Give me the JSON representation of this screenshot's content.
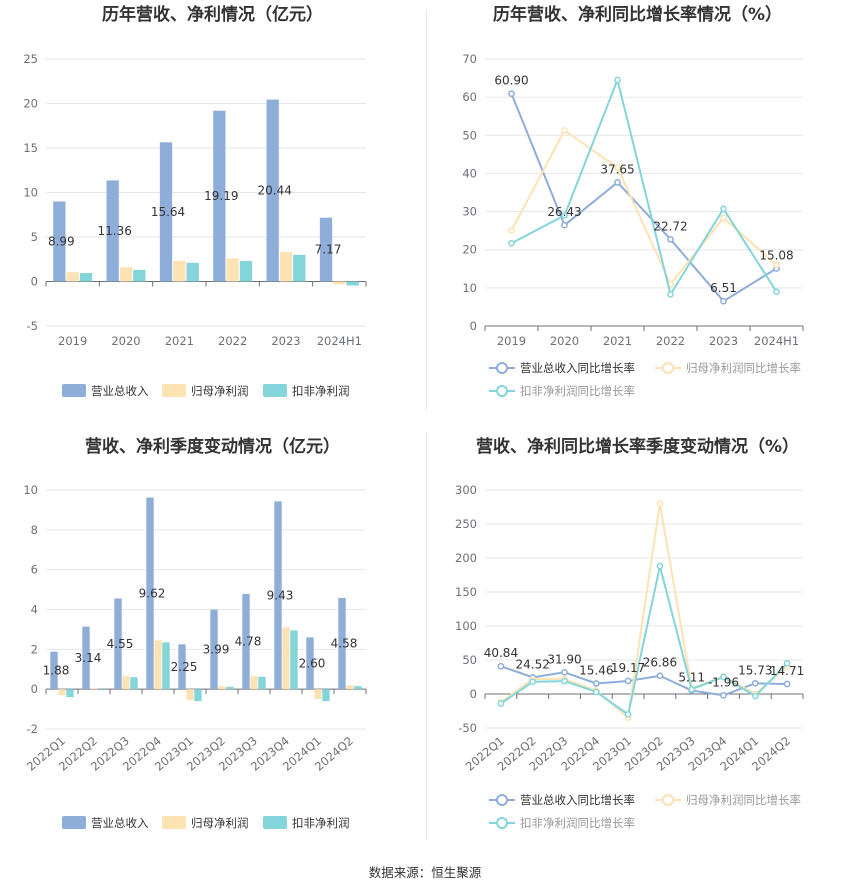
{
  "source": "数据来源：恒生聚源",
  "colors": {
    "revenue": "#8eadd9",
    "net": "#fde2b3",
    "deducted": "#84d5d9",
    "grid": "#e6e6e6",
    "axis": "#6e7079",
    "text": "#333333"
  },
  "chart_data": [
    {
      "type": "bar",
      "title": "历年营收、净利情况（亿元）",
      "categories": [
        "2019",
        "2020",
        "2021",
        "2022",
        "2023",
        "2024H1"
      ],
      "ylim": [
        -5,
        25
      ],
      "yticks": [
        -5,
        0,
        5,
        10,
        15,
        20,
        25
      ],
      "grid": true,
      "legend_position": "bottom",
      "series": [
        {
          "name": "营业总收入",
          "color": "#8eadd9",
          "values": [
            8.99,
            11.36,
            15.64,
            19.19,
            20.44,
            7.17
          ],
          "labels": [
            "8.99",
            "11.36",
            "15.64",
            "19.19",
            "20.44",
            "7.17"
          ]
        },
        {
          "name": "归母净利润",
          "color": "#fde2b3",
          "values": [
            1.05,
            1.6,
            2.3,
            2.6,
            3.3,
            -0.3
          ]
        },
        {
          "name": "扣非净利润",
          "color": "#84d5d9",
          "values": [
            0.95,
            1.3,
            2.1,
            2.3,
            3.0,
            -0.45
          ]
        }
      ]
    },
    {
      "type": "line",
      "title": "历年营收、净利同比增长率情况（%）",
      "categories": [
        "2019",
        "2020",
        "2021",
        "2022",
        "2023",
        "2024H1"
      ],
      "ylim": [
        0,
        70
      ],
      "yticks": [
        0,
        10,
        20,
        30,
        40,
        50,
        60,
        70
      ],
      "grid": true,
      "legend_position": "bottom",
      "series": [
        {
          "name": "营业总收入同比增长率",
          "color": "#8eadd9",
          "values": [
            60.9,
            26.43,
            37.65,
            22.72,
            6.51,
            15.08
          ],
          "labels": [
            "60.90",
            "26.43",
            "37.65",
            "22.72",
            "6.51",
            "15.08"
          ]
        },
        {
          "name": "归母净利润同比增长率",
          "color": "#fde2b3",
          "values": [
            25.0,
            51.3,
            41.5,
            11.0,
            28.3,
            16.0
          ]
        },
        {
          "name": "扣非净利润同比增长率",
          "color": "#84d5d9",
          "values": [
            21.7,
            29.0,
            64.5,
            8.3,
            30.7,
            9.0
          ]
        }
      ]
    },
    {
      "type": "bar",
      "title": "营收、净利季度变动情况（亿元）",
      "categories": [
        "2022Q1",
        "2022Q2",
        "2022Q3",
        "2022Q4",
        "2023Q1",
        "2023Q2",
        "2023Q3",
        "2023Q4",
        "2024Q1",
        "2024Q2"
      ],
      "ylim": [
        -2,
        10
      ],
      "yticks": [
        -2,
        0,
        2,
        4,
        6,
        8,
        10
      ],
      "grid": true,
      "legend_position": "bottom",
      "series": [
        {
          "name": "营业总收入",
          "color": "#8eadd9",
          "values": [
            1.88,
            3.14,
            4.55,
            9.62,
            2.25,
            3.99,
            4.78,
            9.43,
            2.6,
            4.58
          ],
          "labels": [
            "1.88",
            "3.14",
            "4.55",
            "9.62",
            "2.25",
            "3.99",
            "4.78",
            "9.43",
            "2.60",
            "4.58"
          ]
        },
        {
          "name": "归母净利润",
          "color": "#fde2b3",
          "values": [
            -0.3,
            0.05,
            0.65,
            2.45,
            -0.55,
            0.15,
            0.65,
            3.1,
            -0.5,
            0.2
          ]
        },
        {
          "name": "扣非净利润",
          "color": "#84d5d9",
          "values": [
            -0.4,
            -0.05,
            0.6,
            2.35,
            -0.6,
            0.12,
            0.62,
            2.95,
            -0.6,
            0.15
          ]
        }
      ]
    },
    {
      "type": "line",
      "title": "营收、净利同比增长率季度变动情况（%）",
      "categories": [
        "2022Q1",
        "2022Q2",
        "2022Q3",
        "2022Q4",
        "2023Q1",
        "2023Q2",
        "2023Q3",
        "2023Q4",
        "2024Q1",
        "2024Q2"
      ],
      "ylim": [
        -50,
        300
      ],
      "yticks": [
        -50,
        0,
        50,
        100,
        150,
        200,
        250,
        300
      ],
      "grid": true,
      "legend_position": "bottom",
      "series": [
        {
          "name": "营业总收入同比增长率",
          "color": "#8eadd9",
          "values": [
            40.84,
            24.52,
            31.9,
            15.46,
            19.17,
            26.86,
            5.11,
            -1.96,
            15.73,
            14.71
          ],
          "labels": [
            "40.84",
            "24.52",
            "31.90",
            "15.46",
            "19.17",
            "26.86",
            "5.11",
            "-1.96",
            "15.73",
            "14.71"
          ]
        },
        {
          "name": "归母净利润同比增长率",
          "color": "#fde2b3",
          "values": [
            -12,
            22,
            22,
            5,
            -35,
            280,
            8,
            26,
            0,
            40
          ]
        },
        {
          "name": "扣非净利润同比增长率",
          "color": "#84d5d9",
          "values": [
            -14,
            18,
            19,
            3,
            -30,
            188,
            7,
            25,
            -3,
            45
          ]
        }
      ]
    }
  ]
}
